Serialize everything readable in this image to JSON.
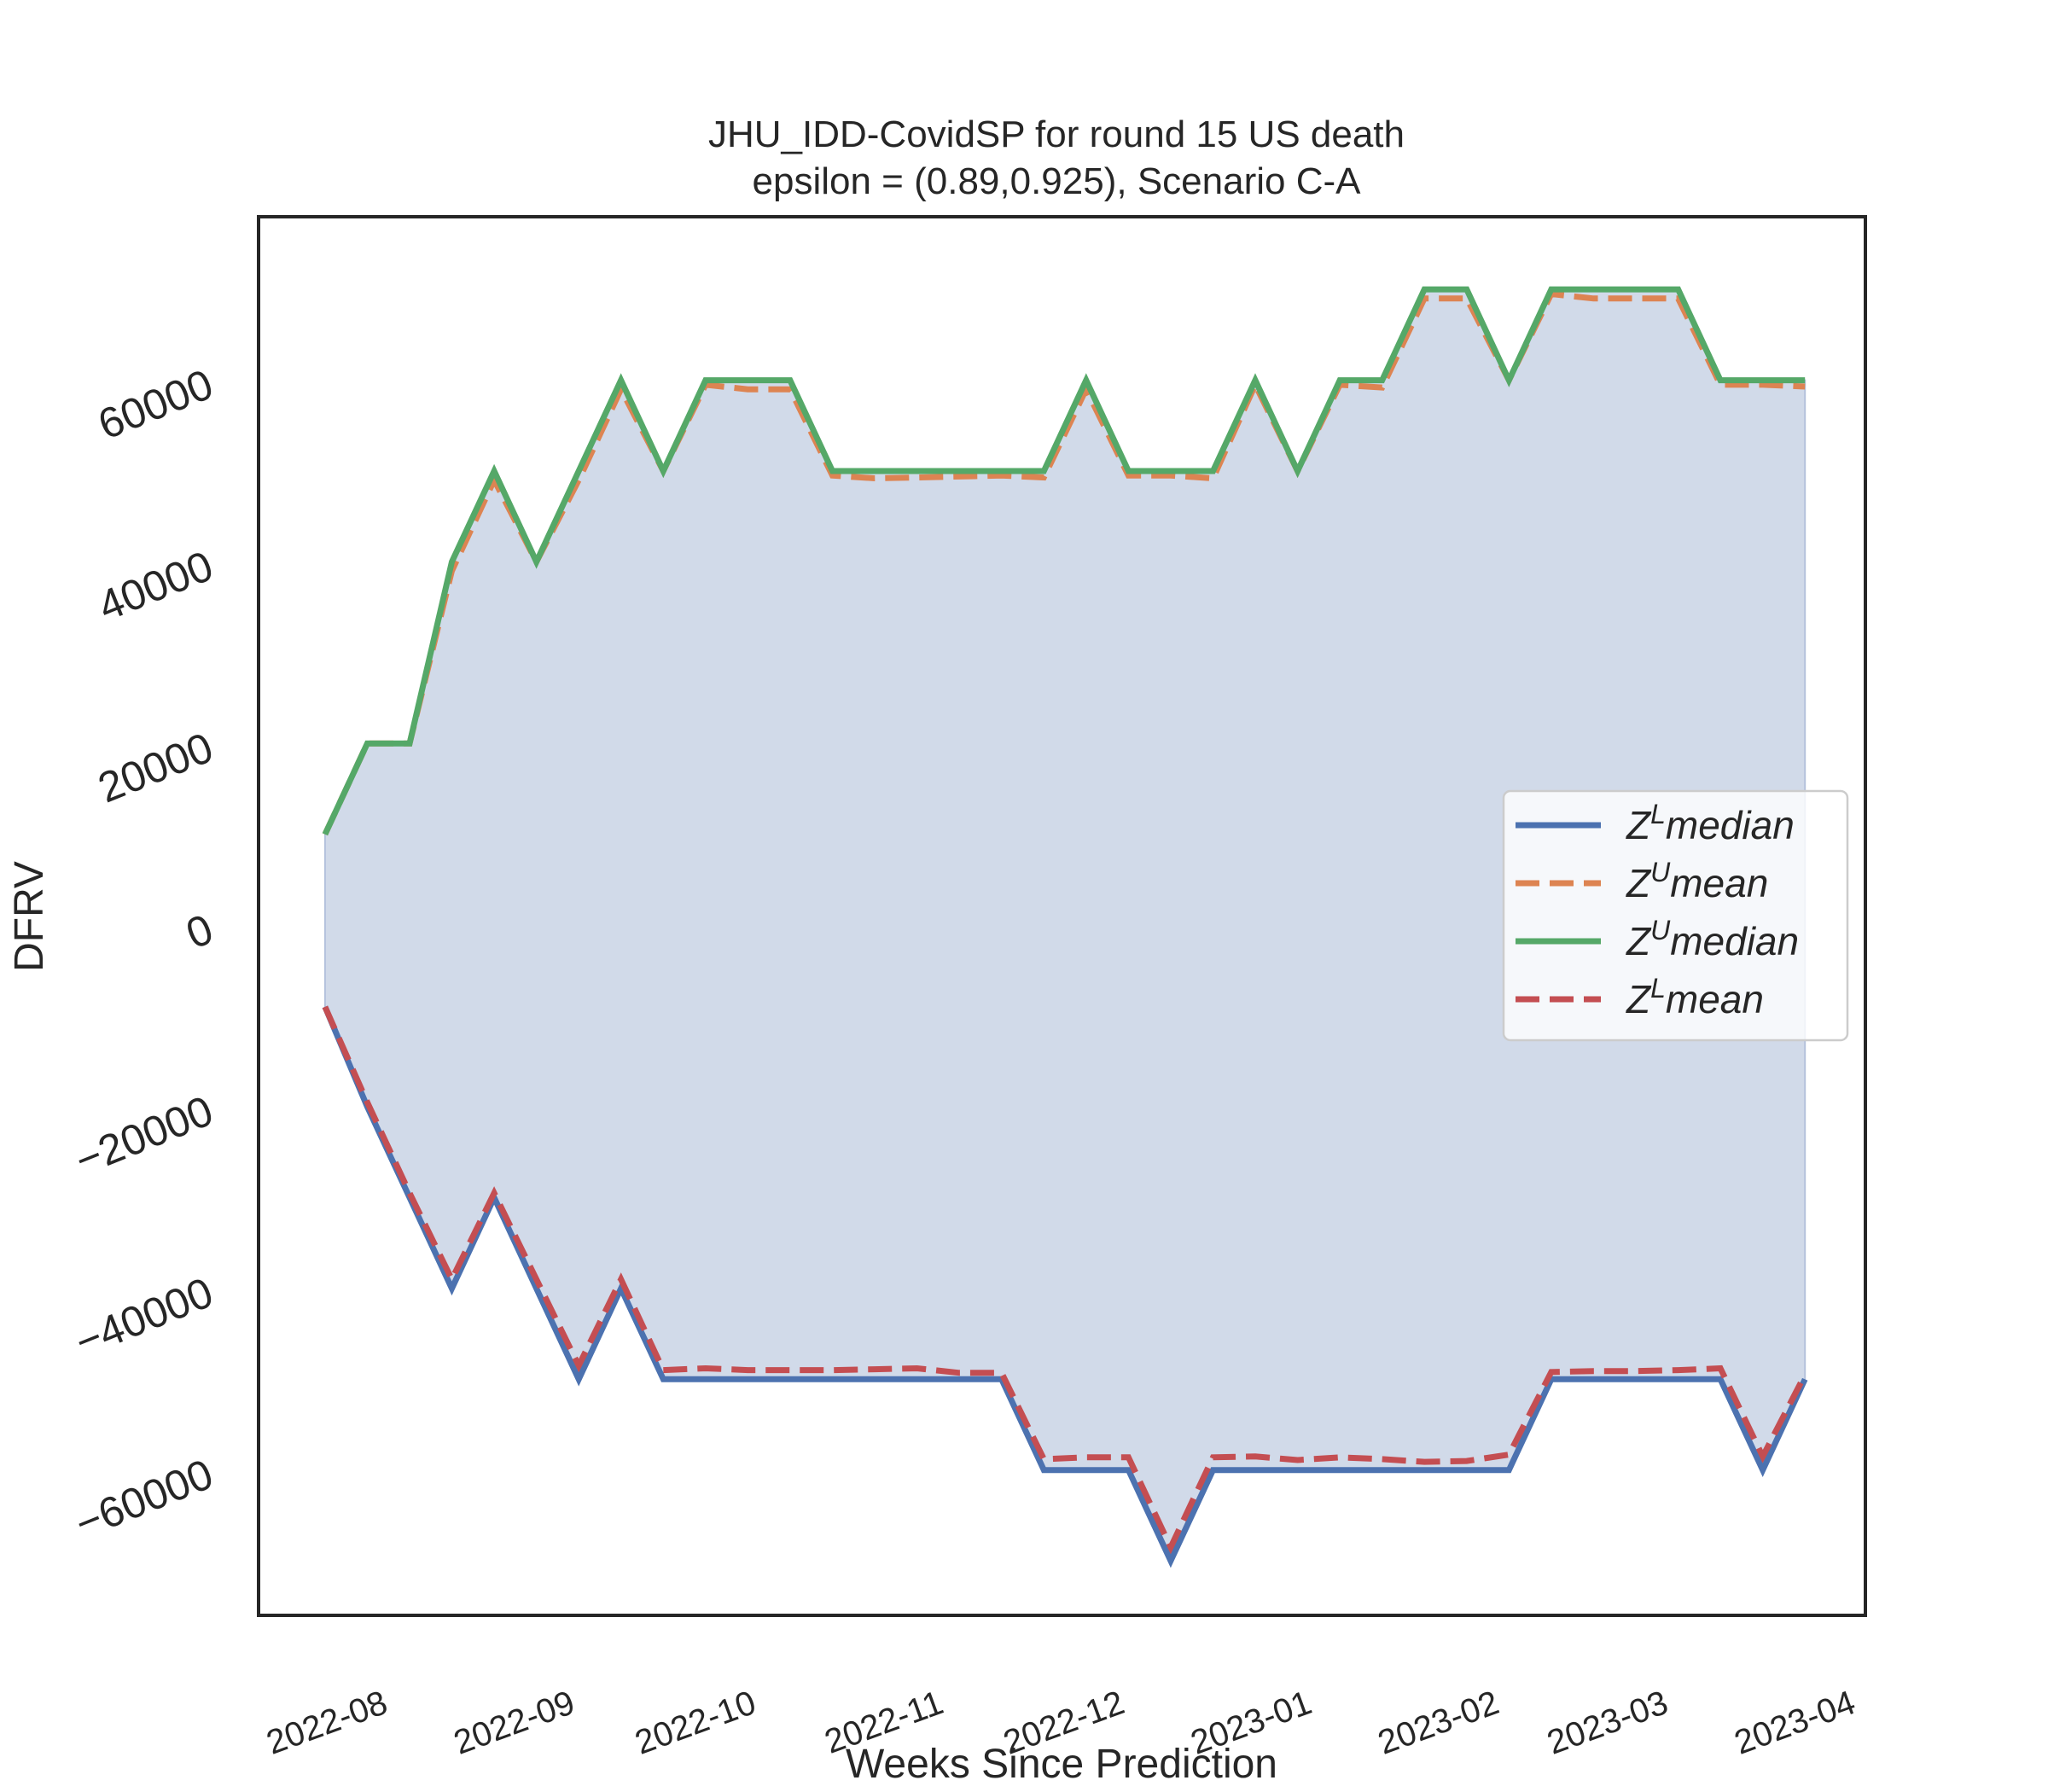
{
  "chart_data": {
    "type": "area",
    "title": "JHU_IDD-CovidSP for round 15 US  death",
    "subtitle": "epsilon = (0.89,0.925), Scenario C-A",
    "xlabel": "Weeks Since Prediction",
    "ylabel": "DFRV",
    "xlim": [
      "2022-07-12",
      "2023-04-04"
    ],
    "ylim": [
      -76000,
      78000
    ],
    "yticks": [
      -60000,
      -40000,
      -20000,
      0,
      20000,
      40000,
      60000
    ],
    "ytick_labels": [
      "−60000",
      "−40000",
      "−20000",
      "0",
      "20000",
      "40000",
      "60000"
    ],
    "xticks": [
      "2022-08-01",
      "2022-09-01",
      "2022-10-01",
      "2022-11-01",
      "2022-12-01",
      "2023-01-01",
      "2023-02-01",
      "2023-03-01",
      "2023-04-01"
    ],
    "xtick_labels": [
      "2022-08",
      "2022-09",
      "2022-10",
      "2022-11",
      "2022-12",
      "2023-01",
      "2023-02",
      "2023-03",
      "2023-04"
    ],
    "grid": false,
    "legend_position": "center-right",
    "fill_between": [
      "Z^L median",
      "Z^U median"
    ],
    "fill_color": "#d1dae9",
    "x": [
      "2022-07-23",
      "2022-07-30",
      "2022-08-06",
      "2022-08-13",
      "2022-08-20",
      "2022-08-27",
      "2022-09-03",
      "2022-09-10",
      "2022-09-17",
      "2022-09-24",
      "2022-10-01",
      "2022-10-08",
      "2022-10-15",
      "2022-10-22",
      "2022-10-29",
      "2022-11-05",
      "2022-11-12",
      "2022-11-19",
      "2022-11-26",
      "2022-12-03",
      "2022-12-10",
      "2022-12-17",
      "2022-12-24",
      "2022-12-31",
      "2023-01-07",
      "2023-01-14",
      "2023-01-21",
      "2023-01-28",
      "2023-02-04",
      "2023-02-11",
      "2023-02-18",
      "2023-02-25",
      "2023-03-04",
      "2023-03-11",
      "2023-03-18",
      "2023-03-25"
    ],
    "series": [
      {
        "name_main": "Z",
        "name_sup": "L",
        "name_rest": "median",
        "color": "#4c72b0",
        "dash": "solid",
        "values": [
          -9000,
          -20000,
          -30000,
          -40000,
          -30000,
          -40000,
          -50000,
          -40000,
          -50000,
          -50000,
          -50000,
          -50000,
          -50000,
          -50000,
          -50000,
          -50000,
          -50000,
          -60000,
          -60000,
          -60000,
          -70000,
          -60000,
          -60000,
          -60000,
          -60000,
          -60000,
          -60000,
          -60000,
          -60000,
          -50000,
          -50000,
          -50000,
          -50000,
          -50000,
          -60000,
          -50000
        ]
      },
      {
        "name_main": "Z",
        "name_sup": "U",
        "name_rest": "mean",
        "color": "#dd8452",
        "dash": "dashed",
        "values": [
          10000,
          20000,
          20000,
          39000,
          49000,
          40000,
          49000,
          59000,
          50000,
          59500,
          59000,
          59000,
          49500,
          49200,
          49300,
          49400,
          49500,
          49300,
          59000,
          49500,
          49500,
          49200,
          59500,
          50000,
          59500,
          59200,
          69000,
          69000,
          60000,
          69500,
          69000,
          69000,
          69000,
          59500,
          59500,
          59300
        ]
      },
      {
        "name_main": "Z",
        "name_sup": "U",
        "name_rest": "median",
        "color": "#55a868",
        "dash": "solid",
        "values": [
          10000,
          20000,
          20000,
          40000,
          50000,
          40000,
          50000,
          60000,
          50000,
          60000,
          60000,
          60000,
          50000,
          50000,
          50000,
          50000,
          50000,
          50000,
          60000,
          50000,
          50000,
          50000,
          60000,
          50000,
          60000,
          60000,
          70000,
          70000,
          60000,
          70000,
          70000,
          70000,
          70000,
          60000,
          60000,
          60000
        ]
      },
      {
        "name_main": "Z",
        "name_sup": "L",
        "name_rest": "mean",
        "color": "#c44e52",
        "dash": "dashed",
        "values": [
          -9000,
          -19500,
          -29500,
          -39000,
          -29500,
          -39000,
          -48500,
          -39000,
          -49000,
          -48800,
          -49000,
          -49000,
          -49000,
          -48900,
          -48800,
          -49300,
          -49300,
          -58800,
          -58600,
          -58600,
          -68500,
          -58600,
          -58500,
          -58900,
          -58600,
          -58800,
          -59100,
          -59000,
          -58300,
          -49200,
          -49100,
          -49100,
          -49000,
          -48800,
          -58500,
          -49500
        ]
      }
    ]
  }
}
